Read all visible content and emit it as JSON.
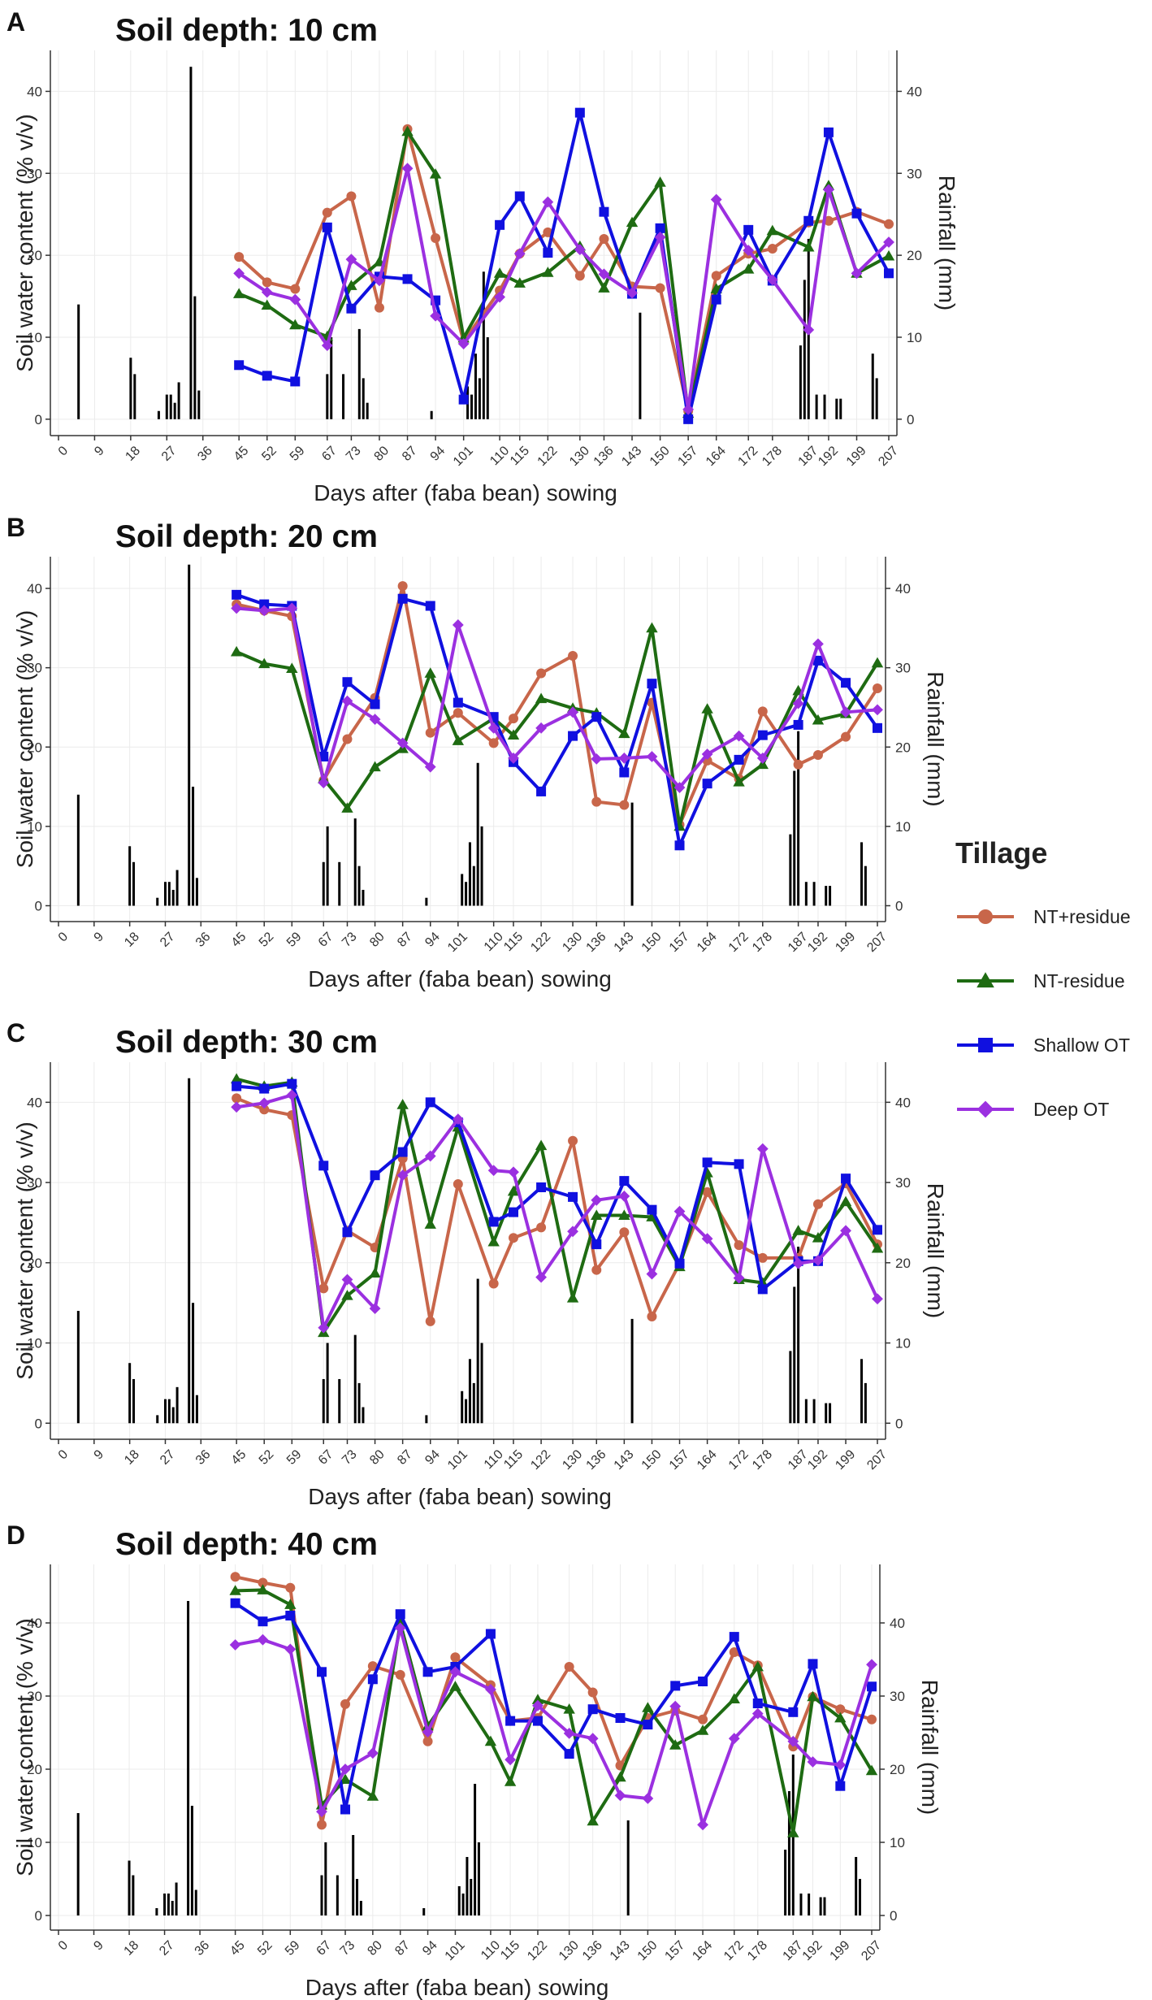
{
  "figure": {
    "legend_title": "Tillage",
    "x_axis_label": "Days after (faba bean) sowing",
    "y_left_label": "Soil water content (% v/v)",
    "y_right_label": "Rainfall (mm)"
  },
  "chart_data": [
    {
      "panel_letter": "A",
      "title": "Soil depth: 10 cm",
      "type": "line",
      "x_ticks": [
        0,
        9,
        18,
        27,
        36,
        45,
        52,
        59,
        67,
        73,
        80,
        87,
        94,
        101,
        110,
        115,
        122,
        130,
        136,
        143,
        150,
        157,
        164,
        172,
        178,
        187,
        192,
        199,
        207
      ],
      "ylim": [
        -2,
        45
      ],
      "y_ticks": [
        0,
        10,
        20,
        30,
        40
      ],
      "y2_ticks": [
        0,
        10,
        20,
        30,
        40
      ],
      "series": [
        {
          "name": "NT+residue",
          "values": [
            19.8,
            16.7,
            15.9,
            25.2,
            27.2,
            13.6,
            35.4,
            22.1,
            9.5,
            15.7,
            20.2,
            22.8,
            17.5,
            22.0,
            16.2,
            16.0,
            1.0,
            17.5,
            20.2,
            20.8,
            24.0,
            24.2,
            25.3,
            23.8
          ]
        },
        {
          "name": "NT-residue",
          "values": [
            15.3,
            13.9,
            11.5,
            10.1,
            16.3,
            19.2,
            35.1,
            29.9,
            9.9,
            17.8,
            16.6,
            17.9,
            21.1,
            16.0,
            24.0,
            28.9,
            0.7,
            15.9,
            18.3,
            23.0,
            21.0,
            28.5,
            17.8,
            19.9
          ]
        },
        {
          "name": "Shallow OT",
          "values": [
            6.6,
            5.3,
            4.6,
            23.4,
            13.5,
            17.4,
            17.1,
            14.5,
            2.4,
            23.7,
            27.2,
            20.3,
            37.4,
            25.3,
            15.3,
            23.3,
            0.0,
            14.6,
            23.1,
            16.9,
            24.2,
            35.0,
            25.1,
            17.8
          ]
        },
        {
          "name": "Deep OT",
          "values": [
            17.8,
            15.5,
            14.6,
            9.0,
            19.5,
            16.9,
            30.6,
            12.6,
            9.2,
            14.9,
            20.2,
            26.5,
            20.7,
            17.7,
            15.4,
            22.2,
            1.2,
            26.8,
            20.6,
            17.0,
            10.9,
            28.0,
            17.8,
            21.6
          ]
        }
      ],
      "rainfall": [
        [
          5,
          14
        ],
        [
          18,
          7.5
        ],
        [
          19,
          5.5
        ],
        [
          25,
          1
        ],
        [
          27,
          3
        ],
        [
          28,
          3
        ],
        [
          29,
          2
        ],
        [
          30,
          4.5
        ],
        [
          33,
          43
        ],
        [
          34,
          15
        ],
        [
          35,
          3.5
        ],
        [
          93,
          1
        ],
        [
          67,
          5.5
        ],
        [
          68,
          10
        ],
        [
          71,
          5.5
        ],
        [
          75,
          11
        ],
        [
          76,
          5
        ],
        [
          77,
          2
        ],
        [
          102,
          4
        ],
        [
          103,
          3
        ],
        [
          104,
          8
        ],
        [
          105,
          5
        ],
        [
          106,
          18
        ],
        [
          107,
          10
        ],
        [
          145,
          13
        ],
        [
          185,
          9
        ],
        [
          186,
          17
        ],
        [
          187,
          22
        ],
        [
          189,
          3
        ],
        [
          191,
          3
        ],
        [
          194,
          2.5
        ],
        [
          195,
          2.5
        ],
        [
          203,
          8
        ],
        [
          204,
          5
        ]
      ]
    },
    {
      "panel_letter": "B",
      "title": "Soil depth: 20 cm",
      "type": "line",
      "x_ticks": [
        0,
        9,
        18,
        27,
        36,
        45,
        52,
        59,
        67,
        73,
        80,
        87,
        94,
        101,
        110,
        115,
        122,
        130,
        136,
        143,
        150,
        157,
        164,
        172,
        178,
        187,
        192,
        199,
        207
      ],
      "ylim": [
        -2,
        44
      ],
      "y_ticks": [
        0,
        10,
        20,
        30,
        40
      ],
      "y2_ticks": [
        0,
        10,
        20,
        30,
        40
      ],
      "series": [
        {
          "name": "NT+residue",
          "values": [
            38.0,
            37.2,
            36.5,
            15.8,
            21.0,
            26.2,
            40.3,
            21.8,
            24.3,
            20.5,
            23.6,
            29.3,
            31.5,
            13.1,
            12.7,
            25.6,
            10.2,
            18.3,
            16.0,
            24.5,
            17.8,
            19.0,
            21.3,
            27.4
          ]
        },
        {
          "name": "NT-residue",
          "values": [
            32.0,
            30.5,
            29.9,
            16.0,
            12.3,
            17.5,
            19.8,
            29.3,
            20.8,
            23.6,
            21.5,
            26.1,
            24.9,
            24.3,
            21.7,
            35.0,
            10.0,
            24.8,
            15.6,
            17.8,
            27.1,
            23.4,
            24.2,
            30.6
          ]
        },
        {
          "name": "Shallow OT",
          "values": [
            39.2,
            38.0,
            37.8,
            18.8,
            28.2,
            25.4,
            38.7,
            37.8,
            25.6,
            23.8,
            18.1,
            14.4,
            21.4,
            23.8,
            16.8,
            28.0,
            7.6,
            15.4,
            18.4,
            21.5,
            22.8,
            30.9,
            28.1,
            22.4
          ]
        },
        {
          "name": "Deep OT",
          "values": [
            37.5,
            37.2,
            37.5,
            15.5,
            25.8,
            23.5,
            20.5,
            17.5,
            35.4,
            22.4,
            18.6,
            22.4,
            24.4,
            18.5,
            18.6,
            18.8,
            14.9,
            19.1,
            21.4,
            18.6,
            25.5,
            33.0,
            24.4,
            24.7
          ]
        }
      ],
      "rainfall": [
        [
          5,
          14
        ],
        [
          18,
          7.5
        ],
        [
          19,
          5.5
        ],
        [
          25,
          1
        ],
        [
          27,
          3
        ],
        [
          28,
          3
        ],
        [
          29,
          2
        ],
        [
          30,
          4.5
        ],
        [
          33,
          43
        ],
        [
          34,
          15
        ],
        [
          35,
          3.5
        ],
        [
          93,
          1
        ],
        [
          67,
          5.5
        ],
        [
          68,
          10
        ],
        [
          71,
          5.5
        ],
        [
          75,
          11
        ],
        [
          76,
          5
        ],
        [
          77,
          2
        ],
        [
          102,
          4
        ],
        [
          103,
          3
        ],
        [
          104,
          8
        ],
        [
          105,
          5
        ],
        [
          106,
          18
        ],
        [
          107,
          10
        ],
        [
          145,
          13
        ],
        [
          185,
          9
        ],
        [
          186,
          17
        ],
        [
          187,
          22
        ],
        [
          189,
          3
        ],
        [
          191,
          3
        ],
        [
          194,
          2.5
        ],
        [
          195,
          2.5
        ],
        [
          203,
          8
        ],
        [
          204,
          5
        ]
      ]
    },
    {
      "panel_letter": "C",
      "title": "Soil depth: 30 cm",
      "type": "line",
      "x_ticks": [
        0,
        9,
        18,
        27,
        36,
        45,
        52,
        59,
        67,
        73,
        80,
        87,
        94,
        101,
        110,
        115,
        122,
        130,
        136,
        143,
        150,
        157,
        164,
        172,
        178,
        187,
        192,
        199,
        207
      ],
      "ylim": [
        -2,
        45
      ],
      "y_ticks": [
        0,
        10,
        20,
        30,
        40
      ],
      "y2_ticks": [
        0,
        10,
        20,
        30,
        40
      ],
      "series": [
        {
          "name": "NT+residue",
          "values": [
            40.5,
            39.1,
            38.4,
            16.8,
            24.0,
            21.9,
            33.0,
            12.7,
            29.8,
            17.4,
            23.1,
            24.4,
            35.2,
            19.1,
            23.8,
            13.3,
            19.9,
            28.8,
            22.2,
            20.6,
            20.6,
            27.3,
            29.9,
            22.3
          ]
        },
        {
          "name": "NT-residue",
          "values": [
            42.9,
            42.0,
            42.5,
            11.3,
            15.9,
            18.7,
            39.7,
            24.8,
            36.9,
            22.6,
            28.9,
            34.6,
            15.6,
            25.9,
            25.9,
            25.7,
            19.5,
            31.2,
            17.9,
            17.5,
            24.0,
            23.1,
            27.6,
            21.8
          ]
        },
        {
          "name": "Shallow OT",
          "values": [
            42.0,
            41.7,
            42.3,
            32.1,
            23.8,
            30.9,
            33.8,
            40.0,
            37.5,
            25.1,
            26.3,
            29.4,
            28.2,
            22.3,
            30.2,
            26.6,
            19.9,
            32.5,
            32.3,
            16.7,
            20.2,
            20.2,
            30.5,
            24.1
          ]
        },
        {
          "name": "Deep OT",
          "values": [
            39.4,
            39.9,
            40.9,
            11.9,
            17.9,
            14.3,
            30.9,
            33.3,
            37.9,
            31.5,
            31.3,
            18.2,
            23.9,
            27.8,
            28.3,
            18.6,
            26.4,
            23.0,
            18.1,
            34.2,
            19.9,
            20.3,
            24.0,
            15.5
          ]
        }
      ],
      "rainfall": [
        [
          5,
          14
        ],
        [
          18,
          7.5
        ],
        [
          19,
          5.5
        ],
        [
          25,
          1
        ],
        [
          27,
          3
        ],
        [
          28,
          3
        ],
        [
          29,
          2
        ],
        [
          30,
          4.5
        ],
        [
          33,
          43
        ],
        [
          34,
          15
        ],
        [
          35,
          3.5
        ],
        [
          93,
          1
        ],
        [
          67,
          5.5
        ],
        [
          68,
          10
        ],
        [
          71,
          5.5
        ],
        [
          75,
          11
        ],
        [
          76,
          5
        ],
        [
          77,
          2
        ],
        [
          102,
          4
        ],
        [
          103,
          3
        ],
        [
          104,
          8
        ],
        [
          105,
          5
        ],
        [
          106,
          18
        ],
        [
          107,
          10
        ],
        [
          145,
          13
        ],
        [
          185,
          9
        ],
        [
          186,
          17
        ],
        [
          187,
          22
        ],
        [
          189,
          3
        ],
        [
          191,
          3
        ],
        [
          194,
          2.5
        ],
        [
          195,
          2.5
        ],
        [
          203,
          8
        ],
        [
          204,
          5
        ]
      ]
    },
    {
      "panel_letter": "D",
      "title": "Soil depth: 40 cm",
      "type": "line",
      "x_ticks": [
        0,
        9,
        18,
        27,
        36,
        45,
        52,
        59,
        67,
        73,
        80,
        87,
        94,
        101,
        110,
        115,
        122,
        130,
        136,
        143,
        150,
        157,
        164,
        172,
        178,
        187,
        192,
        199,
        207
      ],
      "ylim": [
        -2,
        48
      ],
      "y_ticks": [
        0,
        10,
        20,
        30,
        40
      ],
      "y2_ticks": [
        0,
        10,
        20,
        30,
        40
      ],
      "series": [
        {
          "name": "NT+residue",
          "values": [
            46.3,
            45.5,
            44.8,
            12.4,
            28.9,
            34.1,
            32.9,
            23.8,
            35.3,
            31.5,
            26.6,
            27.0,
            34.0,
            30.5,
            20.5,
            27.0,
            28.0,
            26.8,
            36.0,
            34.2,
            23.1,
            29.9,
            28.2,
            26.8
          ]
        },
        {
          "name": "NT-residue",
          "values": [
            44.4,
            44.5,
            42.5,
            15.1,
            18.6,
            16.3,
            40.0,
            25.9,
            31.3,
            23.8,
            18.3,
            29.5,
            28.2,
            12.9,
            18.9,
            28.4,
            23.3,
            25.3,
            29.6,
            34.0,
            11.3,
            29.9,
            27.0,
            19.8
          ]
        },
        {
          "name": "Shallow OT",
          "values": [
            42.7,
            40.2,
            41.0,
            33.3,
            14.5,
            32.3,
            41.2,
            33.3,
            34.0,
            38.5,
            26.6,
            26.6,
            22.1,
            28.2,
            27.0,
            26.1,
            31.4,
            32.0,
            38.1,
            29.0,
            27.8,
            34.4,
            17.7,
            31.3
          ]
        },
        {
          "name": "Deep OT",
          "values": [
            37.0,
            37.7,
            36.4,
            14.2,
            20.0,
            22.2,
            39.3,
            25.1,
            33.3,
            30.9,
            21.3,
            28.7,
            24.9,
            24.2,
            16.4,
            16.0,
            28.6,
            12.4,
            24.2,
            27.6,
            23.8,
            21.0,
            20.6,
            34.3
          ]
        }
      ],
      "rainfall": [
        [
          5,
          14
        ],
        [
          18,
          7.5
        ],
        [
          19,
          5.5
        ],
        [
          25,
          1
        ],
        [
          27,
          3
        ],
        [
          28,
          3
        ],
        [
          29,
          2
        ],
        [
          30,
          4.5
        ],
        [
          33,
          43
        ],
        [
          34,
          15
        ],
        [
          35,
          3.5
        ],
        [
          93,
          1
        ],
        [
          67,
          5.5
        ],
        [
          68,
          10
        ],
        [
          71,
          5.5
        ],
        [
          75,
          11
        ],
        [
          76,
          5
        ],
        [
          77,
          2
        ],
        [
          102,
          4
        ],
        [
          103,
          3
        ],
        [
          104,
          8
        ],
        [
          105,
          5
        ],
        [
          106,
          18
        ],
        [
          107,
          10
        ],
        [
          145,
          13
        ],
        [
          185,
          9
        ],
        [
          186,
          17
        ],
        [
          187,
          22
        ],
        [
          189,
          3
        ],
        [
          191,
          3
        ],
        [
          194,
          2.5
        ],
        [
          195,
          2.5
        ],
        [
          203,
          8
        ],
        [
          204,
          5
        ]
      ]
    }
  ],
  "legend": {
    "entries": [
      {
        "name": "NT+residue",
        "color": "#C8664A",
        "marker": "circle"
      },
      {
        "name": "NT-residue",
        "color": "#1E6B12",
        "marker": "triangle"
      },
      {
        "name": "Shallow OT",
        "color": "#1010E0",
        "marker": "square"
      },
      {
        "name": "Deep OT",
        "color": "#9B30E0",
        "marker": "diamond"
      }
    ]
  },
  "colors": {
    "rainfall_bar": "#000000",
    "grid": "#ebebeb",
    "axis": "#333333"
  }
}
